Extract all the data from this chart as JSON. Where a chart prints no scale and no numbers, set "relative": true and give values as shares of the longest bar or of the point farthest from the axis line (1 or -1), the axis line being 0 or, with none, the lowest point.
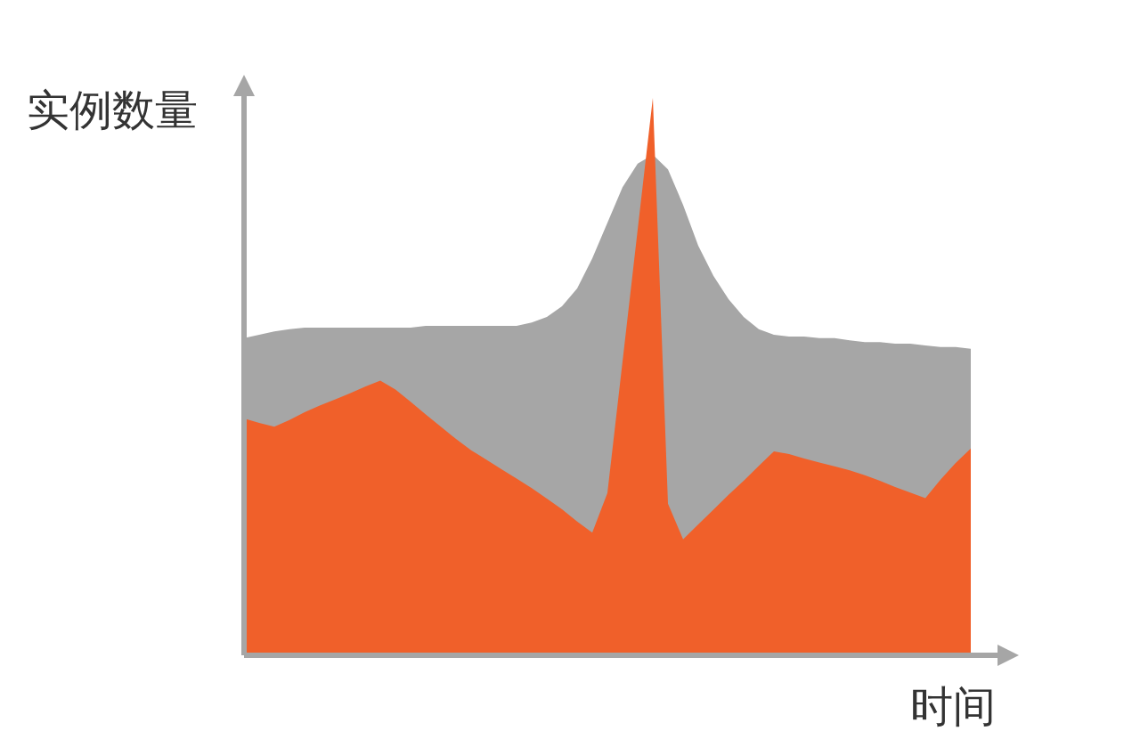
{
  "chart_data": {
    "type": "area",
    "relative": true,
    "xlabel": "时间",
    "ylabel": "实例数量",
    "categories": [
      null,
      null,
      null,
      null,
      null,
      null,
      null,
      null,
      null,
      null,
      null,
      null,
      null,
      null,
      null,
      null,
      null,
      null,
      null,
      null,
      null,
      null,
      null,
      null,
      null,
      null,
      null,
      null,
      null,
      null,
      null,
      null,
      null,
      null,
      null,
      null,
      null,
      null,
      null,
      null,
      null,
      null,
      null,
      null,
      null,
      null,
      null,
      null,
      null
    ],
    "series": [
      {
        "color": "#a6a6a6",
        "values": [
          0.569,
          0.575,
          0.581,
          0.585,
          0.588,
          0.588,
          0.588,
          0.588,
          0.588,
          0.588,
          0.588,
          0.588,
          0.591,
          0.591,
          0.591,
          0.591,
          0.591,
          0.591,
          0.591,
          0.597,
          0.607,
          0.626,
          0.658,
          0.712,
          0.776,
          0.84,
          0.882,
          0.898,
          0.872,
          0.808,
          0.735,
          0.681,
          0.639,
          0.607,
          0.585,
          0.575,
          0.572,
          0.572,
          0.569,
          0.569,
          0.565,
          0.562,
          0.562,
          0.559,
          0.559,
          0.556,
          0.553,
          0.553,
          0.55
        ]
      },
      {
        "color": "#f0602a",
        "values": [
          0.425,
          0.417,
          0.41,
          0.422,
          0.436,
          0.448,
          0.459,
          0.47,
          0.482,
          0.493,
          0.477,
          0.455,
          0.432,
          0.41,
          0.388,
          0.368,
          0.351,
          0.334,
          0.317,
          0.3,
          0.281,
          0.262,
          0.24,
          0.22,
          0.291,
          0.527,
          0.764,
          1,
          0.272,
          0.208,
          0.235,
          0.261,
          0.288,
          0.313,
          0.34,
          0.366,
          0.361,
          0.353,
          0.346,
          0.339,
          0.332,
          0.323,
          0.313,
          0.302,
          0.292,
          0.282,
          0.315,
          0.345,
          0.371
        ]
      }
    ]
  }
}
